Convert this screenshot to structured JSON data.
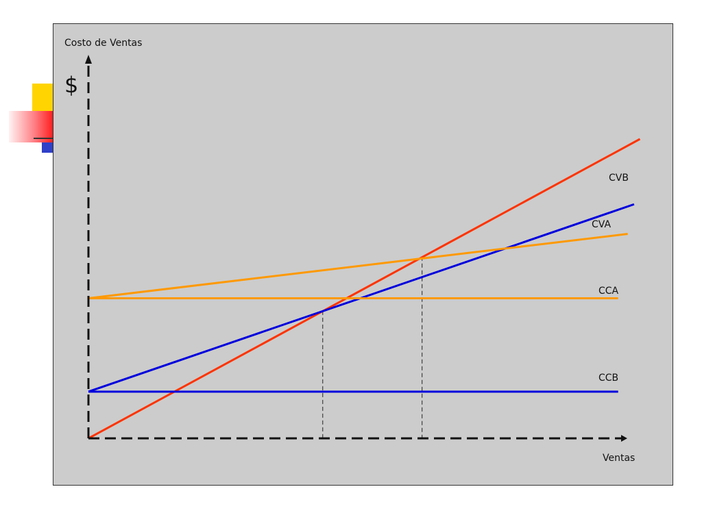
{
  "chart_data": {
    "type": "line",
    "ylabel": "Costo de Ventas",
    "y_symbol": "$",
    "xlabel": "Ventas",
    "xlim": [
      0,
      100
    ],
    "ylim": [
      0,
      100
    ],
    "grid": false,
    "series": [
      {
        "name": "CVB",
        "color": "#ff3300",
        "x": [
          0,
          103.8
        ],
        "y": [
          0,
          100
        ]
      },
      {
        "name": "CVA",
        "color": "#0000dd",
        "x": [
          0,
          102.7
        ],
        "y": [
          15.6,
          78.2
        ]
      },
      {
        "name": "CCA",
        "color": "#ff9900",
        "x": [
          0,
          99.7
        ],
        "y": [
          46.8,
          46.8
        ]
      },
      {
        "name": "CCB",
        "color": "#0000dd",
        "x": [
          0,
          99.7
        ],
        "y": [
          15.6,
          15.6
        ]
      },
      {
        "name": "",
        "color": "#ff9900",
        "x": [
          0,
          101.5
        ],
        "y": [
          46.8,
          68.3
        ]
      }
    ],
    "reference_lines": [
      {
        "x": 44.1,
        "y": 42.6
      },
      {
        "x": 62.8,
        "y": 60.7
      }
    ]
  },
  "colors": {
    "panel_background": "#cccccc",
    "axis": "#111111",
    "deco_yellow": "#ffd400",
    "deco_red": "#ff1010",
    "deco_blue": "#3040c8"
  }
}
